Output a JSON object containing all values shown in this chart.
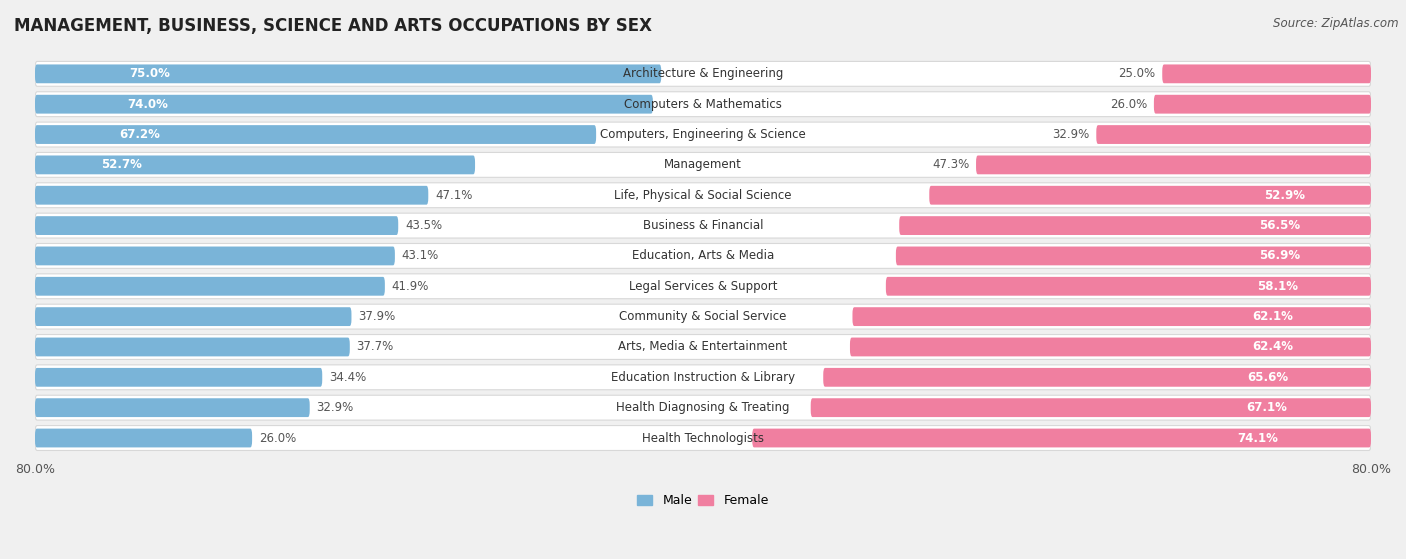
{
  "title": "MANAGEMENT, BUSINESS, SCIENCE AND ARTS OCCUPATIONS BY SEX",
  "source": "Source: ZipAtlas.com",
  "categories": [
    "Architecture & Engineering",
    "Computers & Mathematics",
    "Computers, Engineering & Science",
    "Management",
    "Life, Physical & Social Science",
    "Business & Financial",
    "Education, Arts & Media",
    "Legal Services & Support",
    "Community & Social Service",
    "Arts, Media & Entertainment",
    "Education Instruction & Library",
    "Health Diagnosing & Treating",
    "Health Technologists"
  ],
  "male_pct": [
    75.0,
    74.0,
    67.2,
    52.7,
    47.1,
    43.5,
    43.1,
    41.9,
    37.9,
    37.7,
    34.4,
    32.9,
    26.0
  ],
  "female_pct": [
    25.0,
    26.0,
    32.9,
    47.3,
    52.9,
    56.5,
    56.9,
    58.1,
    62.1,
    62.4,
    65.6,
    67.1,
    74.1
  ],
  "male_color": "#7ab4d8",
  "female_color": "#f07fa0",
  "axis_limit": 80.0,
  "bg_color": "#f0f0f0",
  "row_bg_color": "#ffffff",
  "row_border_color": "#d8d8d8",
  "title_fontsize": 12,
  "label_fontsize": 8.5,
  "source_fontsize": 8.5,
  "pct_inside_color": "#ffffff",
  "pct_outside_color": "#555555"
}
